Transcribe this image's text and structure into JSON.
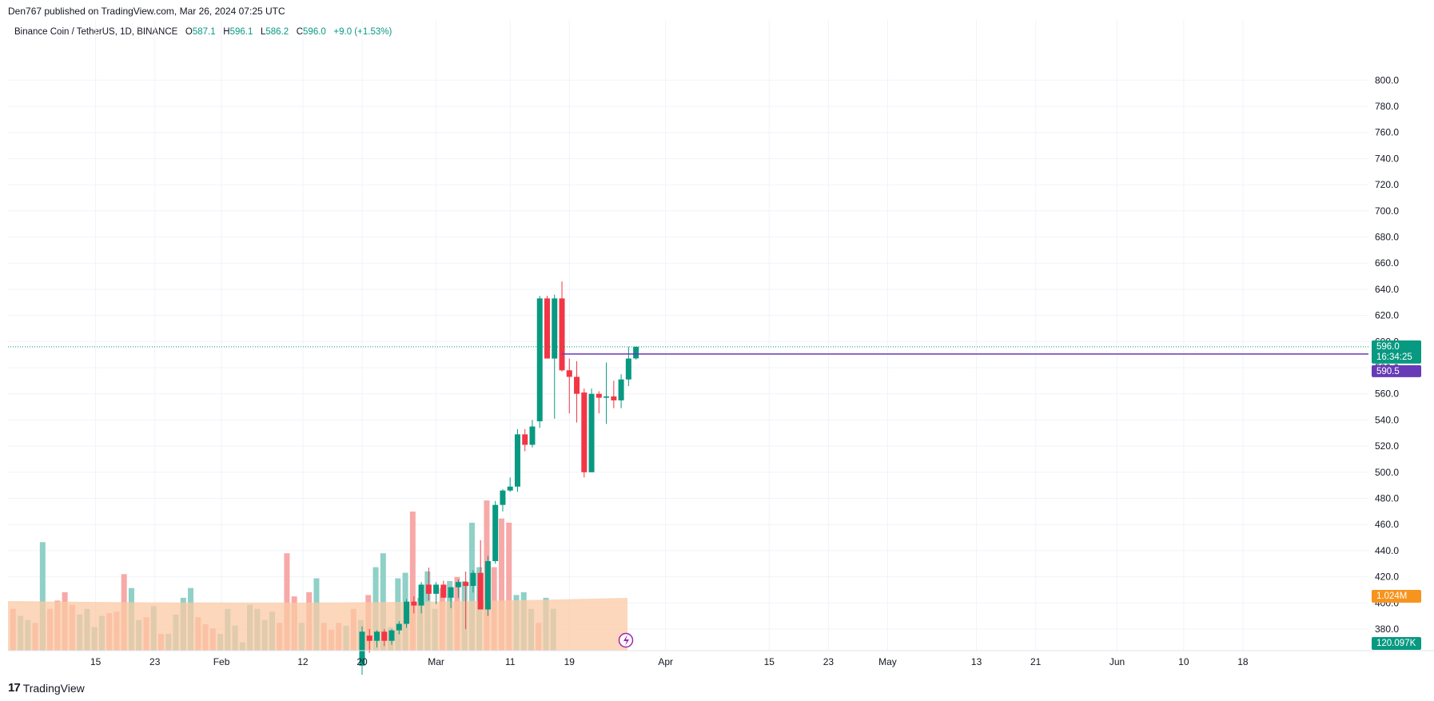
{
  "header": {
    "published": "Den767 published on TradingView.com, Mar 26, 2024 07:25 UTC"
  },
  "legend": {
    "symbol": "Binance Coin / TetherUS, 1D, BINANCE",
    "o_label": "O",
    "o": "587.1",
    "h_label": "H",
    "h": "596.1",
    "l_label": "L",
    "l": "586.2",
    "c_label": "C",
    "c": "596.0",
    "change": "+9.0 (+1.53%)"
  },
  "footer": {
    "brand": "TradingView",
    "logo_icon": "tradingview-logo-icon"
  },
  "colors": {
    "up": "#089981",
    "down": "#f23645",
    "up_volume": "#8fd0c7",
    "down_volume": "#f7a9a7",
    "volume_ma": "#fbc9a4",
    "hline": "#673ab7",
    "grid": "#f0f3fa"
  },
  "badges": {
    "last_price": "596.0",
    "countdown": "16:34:25",
    "hline_price": "590.5",
    "volume_ma": "1.024M",
    "volume": "120.097K"
  },
  "chart_data": {
    "type": "candlestick",
    "y_axis": {
      "range": [
        370,
        800
      ],
      "ticks": [
        "380.0",
        "400.0",
        "420.0",
        "440.0",
        "460.0",
        "480.0",
        "500.0",
        "520.0",
        "540.0",
        "560.0",
        "580.0",
        "600.0",
        "620.0",
        "640.0",
        "660.0",
        "680.0",
        "700.0",
        "720.0",
        "740.0",
        "760.0",
        "780.0",
        "800.0"
      ]
    },
    "x_axis": {
      "ticks": [
        {
          "label": "15",
          "date": "2024-01-15"
        },
        {
          "label": "23",
          "date": "2024-01-23"
        },
        {
          "label": "Feb",
          "date": "2024-02-01"
        },
        {
          "label": "12",
          "date": "2024-02-12"
        },
        {
          "label": "20",
          "date": "2024-02-20"
        },
        {
          "label": "Mar",
          "date": "2024-03-01"
        },
        {
          "label": "11",
          "date": "2024-03-11"
        },
        {
          "label": "19",
          "date": "2024-03-19"
        },
        {
          "label": "Apr",
          "date": "2024-04-01"
        },
        {
          "label": "15",
          "date": "2024-04-15"
        },
        {
          "label": "23",
          "date": "2024-04-23"
        },
        {
          "label": "May",
          "date": "2024-05-01"
        },
        {
          "label": "13",
          "date": "2024-05-13"
        },
        {
          "label": "21",
          "date": "2024-05-21"
        },
        {
          "label": "Jun",
          "date": "2024-06-01"
        },
        {
          "label": "10",
          "date": "2024-06-10"
        },
        {
          "label": "18",
          "date": "2024-06-18"
        }
      ]
    },
    "candles": [
      {
        "date": "2024-02-20",
        "o": 352,
        "h": 382,
        "l": 345,
        "c": 378
      },
      {
        "date": "2024-02-21",
        "o": 375,
        "h": 380,
        "l": 362,
        "c": 371
      },
      {
        "date": "2024-02-22",
        "o": 371,
        "h": 379,
        "l": 366,
        "c": 378
      },
      {
        "date": "2024-02-23",
        "o": 378,
        "h": 380,
        "l": 367,
        "c": 371
      },
      {
        "date": "2024-02-24",
        "o": 371,
        "h": 380,
        "l": 368,
        "c": 379
      },
      {
        "date": "2024-02-25",
        "o": 379,
        "h": 386,
        "l": 376,
        "c": 384
      },
      {
        "date": "2024-02-26",
        "o": 384,
        "h": 403,
        "l": 381,
        "c": 401
      },
      {
        "date": "2024-02-27",
        "o": 401,
        "h": 405,
        "l": 392,
        "c": 398
      },
      {
        "date": "2024-02-28",
        "o": 398,
        "h": 416,
        "l": 392,
        "c": 414
      },
      {
        "date": "2024-02-29",
        "o": 414,
        "h": 427,
        "l": 402,
        "c": 407
      },
      {
        "date": "2024-03-01",
        "o": 407,
        "h": 416,
        "l": 399,
        "c": 414
      },
      {
        "date": "2024-03-02",
        "o": 414,
        "h": 417,
        "l": 404,
        "c": 404
      },
      {
        "date": "2024-03-03",
        "o": 404,
        "h": 412,
        "l": 396,
        "c": 412
      },
      {
        "date": "2024-03-04",
        "o": 412,
        "h": 418,
        "l": 404,
        "c": 416
      },
      {
        "date": "2024-03-05",
        "o": 416,
        "h": 424,
        "l": 380,
        "c": 413
      },
      {
        "date": "2024-03-06",
        "o": 413,
        "h": 425,
        "l": 408,
        "c": 423
      },
      {
        "date": "2024-03-07",
        "o": 423,
        "h": 448,
        "l": 395,
        "c": 395
      },
      {
        "date": "2024-03-08",
        "o": 395,
        "h": 436,
        "l": 390,
        "c": 432
      },
      {
        "date": "2024-03-09",
        "o": 432,
        "h": 478,
        "l": 430,
        "c": 475
      },
      {
        "date": "2024-03-10",
        "o": 475,
        "h": 487,
        "l": 470,
        "c": 486
      },
      {
        "date": "2024-03-11",
        "o": 486,
        "h": 496,
        "l": 485,
        "c": 489
      },
      {
        "date": "2024-03-12",
        "o": 489,
        "h": 533,
        "l": 485,
        "c": 529
      },
      {
        "date": "2024-03-13",
        "o": 529,
        "h": 533,
        "l": 516,
        "c": 521
      },
      {
        "date": "2024-03-14",
        "o": 521,
        "h": 540,
        "l": 519,
        "c": 535
      },
      {
        "date": "2024-03-15",
        "o": 539,
        "h": 635,
        "l": 534,
        "c": 633
      },
      {
        "date": "2024-03-16",
        "o": 633,
        "h": 635,
        "l": 587,
        "c": 587
      },
      {
        "date": "2024-03-17",
        "o": 587,
        "h": 636,
        "l": 541,
        "c": 633
      },
      {
        "date": "2024-03-18",
        "o": 633,
        "h": 646,
        "l": 577,
        "c": 578
      },
      {
        "date": "2024-03-19",
        "o": 578,
        "h": 587,
        "l": 545,
        "c": 573
      },
      {
        "date": "2024-03-20",
        "o": 573,
        "h": 585,
        "l": 538,
        "c": 560
      },
      {
        "date": "2024-03-21",
        "o": 561,
        "h": 564,
        "l": 496,
        "c": 500
      },
      {
        "date": "2024-03-22",
        "o": 500,
        "h": 564,
        "l": 500,
        "c": 560
      },
      {
        "date": "2024-03-23",
        "o": 560,
        "h": 562,
        "l": 545,
        "c": 557
      },
      {
        "date": "2024-03-24",
        "o": 557,
        "h": 584,
        "l": 537,
        "c": 558
      },
      {
        "date": "2024-03-25",
        "o": 558,
        "h": 570,
        "l": 549,
        "c": 555
      },
      {
        "date": "2024-03-26",
        "o": 555,
        "h": 575,
        "l": 549,
        "c": 571
      },
      {
        "date": "2024-03-27",
        "o": 571,
        "h": 596,
        "l": 566,
        "c": 587
      },
      {
        "date": "2024-03-28",
        "o": 587.1,
        "h": 596.1,
        "l": 586.2,
        "c": 596.0
      }
    ],
    "horizontal_line": 590.5,
    "last_price": 596.0
  }
}
